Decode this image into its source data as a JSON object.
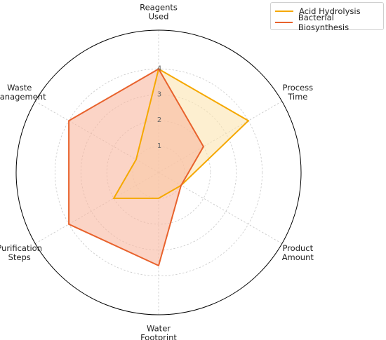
{
  "chart_data": {
    "type": "radar",
    "axes": [
      {
        "label": [
          "Reagents",
          "Used"
        ]
      },
      {
        "label": [
          "Process",
          "Time"
        ]
      },
      {
        "label": [
          "Product",
          "Amount"
        ]
      },
      {
        "label": [
          "Water",
          "Footprint"
        ]
      },
      {
        "label": [
          "Purification",
          "Steps"
        ]
      },
      {
        "label": [
          "Waste",
          "Management"
        ]
      }
    ],
    "rmax": 5.5,
    "ticks": [
      1,
      2,
      3,
      4
    ],
    "grid": true,
    "legend_position": "top-right",
    "series": [
      {
        "name": "Acid Hydrolysis",
        "color": "#F5A800",
        "fill": "#FCE4B0",
        "values": [
          4,
          4,
          1,
          1,
          2,
          1
        ]
      },
      {
        "name": "Bacterial Biosynthesis",
        "color": "#E8622C",
        "fill": "#F9B8A0",
        "values": [
          4,
          2,
          1,
          3.6,
          4,
          4
        ]
      }
    ]
  }
}
